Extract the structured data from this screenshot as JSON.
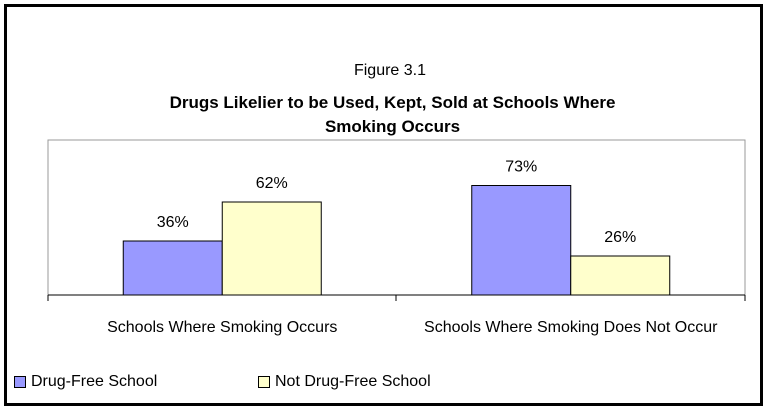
{
  "chart_data": {
    "type": "bar",
    "figure_label": "Figure 3.1",
    "title": "Drugs Likelier to be Used, Kept, Sold at Schools Where Smoking Occurs",
    "categories": [
      "Schools Where Smoking Occurs",
      "Schools Where Smoking Does Not Occur"
    ],
    "series": [
      {
        "name": "Drug-Free School",
        "color": "#9999ff",
        "values": [
          36,
          73
        ],
        "value_labels": [
          "36%",
          "73%"
        ]
      },
      {
        "name": "Not Drug-Free School",
        "color": "#ffffcc",
        "values": [
          62,
          26
        ],
        "value_labels": [
          "62%",
          "26%"
        ]
      }
    ],
    "ylim": [
      0,
      100
    ],
    "legend": "bottom-left"
  }
}
